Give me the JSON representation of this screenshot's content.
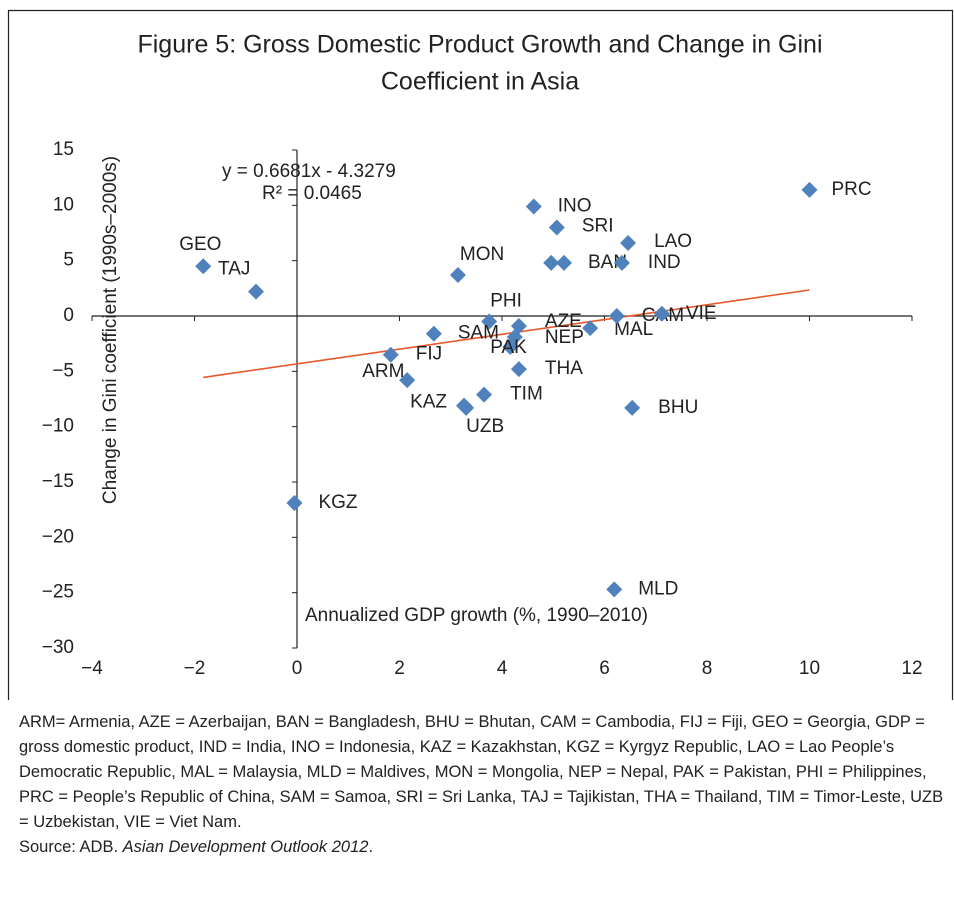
{
  "chart_data": {
    "type": "scatter",
    "title": [
      "Figure 5: Gross Domestic Product Growth and Change in Gini",
      "Coefficient in Asia"
    ],
    "x_label": "Annualized GDP growth (%, 1990–2010)",
    "y_label": "Change in Gini coefficient (1990s–2000s)",
    "color": "#4f81bd",
    "labels": [
      "PRC",
      "GEO",
      "TAJ",
      "KGZ",
      "MON",
      "INO",
      "SRI",
      null,
      "BAN",
      "IND",
      "LAO",
      "PHI",
      "SAM",
      "AZE",
      "MAL",
      "CAM",
      "VIE",
      "NEP",
      "PAK",
      "THA",
      "FIJ",
      "ARM",
      "KAZ",
      "UZB",
      "TIM",
      "BHU",
      "MLD"
    ],
    "x": [
      10,
      -1.83,
      -0.8,
      -0.05,
      3.14,
      4.62,
      5.07,
      4.96,
      5.21,
      6.34,
      6.46,
      3.75,
      2.67,
      4.33,
      5.72,
      6.24,
      7.12,
      4.25,
      4.16,
      4.33,
      1.83,
      2.15,
      3.26,
      3.3,
      3.65,
      6.54,
      6.19
    ],
    "y": [
      11.4,
      4.5,
      2.2,
      -16.9,
      3.7,
      9.9,
      8.0,
      4.8,
      4.8,
      4.8,
      6.6,
      -0.5,
      -1.6,
      -0.9,
      -1.1,
      0,
      0.2,
      -1.9,
      -2.8,
      -4.8,
      -3.5,
      -5.8,
      -8.1,
      -8.3,
      -7.1,
      -8.3,
      -24.7
    ],
    "trendline": {
      "equation": "y = 0.6681x - 4.3279",
      "r2": "R² = 0.0465",
      "color": "#e8582a",
      "x": [
        -1.83,
        10
      ],
      "y": [
        -5.55,
        2.35
      ]
    },
    "xlim": [
      -4,
      12
    ],
    "xticks": [
      {
        "value": -4,
        "label": "−4"
      },
      {
        "value": -2,
        "label": "−2"
      },
      0,
      2,
      4,
      6,
      8,
      10,
      12
    ],
    "ylim": [
      -30,
      15
    ],
    "yticks": [
      {
        "value": -30,
        "label": "−30"
      },
      {
        "value": -25,
        "label": "−25"
      },
      {
        "value": -20,
        "label": "−20"
      },
      {
        "value": -15,
        "label": "−15"
      },
      {
        "value": -10,
        "label": "−10"
      },
      {
        "value": -5,
        "label": "−5"
      },
      0,
      5,
      10,
      15
    ]
  },
  "notes": {
    "abbreviations": "ARM= Armenia, AZE = Azerbaijan, BAN = Bangladesh, BHU = Bhutan, CAM = Cambodia, FIJ = Fiji, GEO = Georgia, GDP = gross domestic product, IND = India, INO = Indonesia, KAZ = Kazakhstan, KGZ = Kyrgyz Republic, LAO = Lao People’s Democratic Republic, MAL = Malaysia, MLD = Maldives, MON = Mongolia, NEP = Nepal, PAK = Pakistan, PHI = Philippines, PRC = People’s Republic of China, SAM = Samoa, SRI = Sri Lanka, TAJ = Tajikistan, THA = Thailand, TIM = Timor-Leste, UZB = Uzbekistan, VIE = Viet Nam.",
    "source": {
      "prefix": "Source: ADB. ",
      "title": "Asian Development Outlook 2012",
      "suffix": "."
    }
  }
}
